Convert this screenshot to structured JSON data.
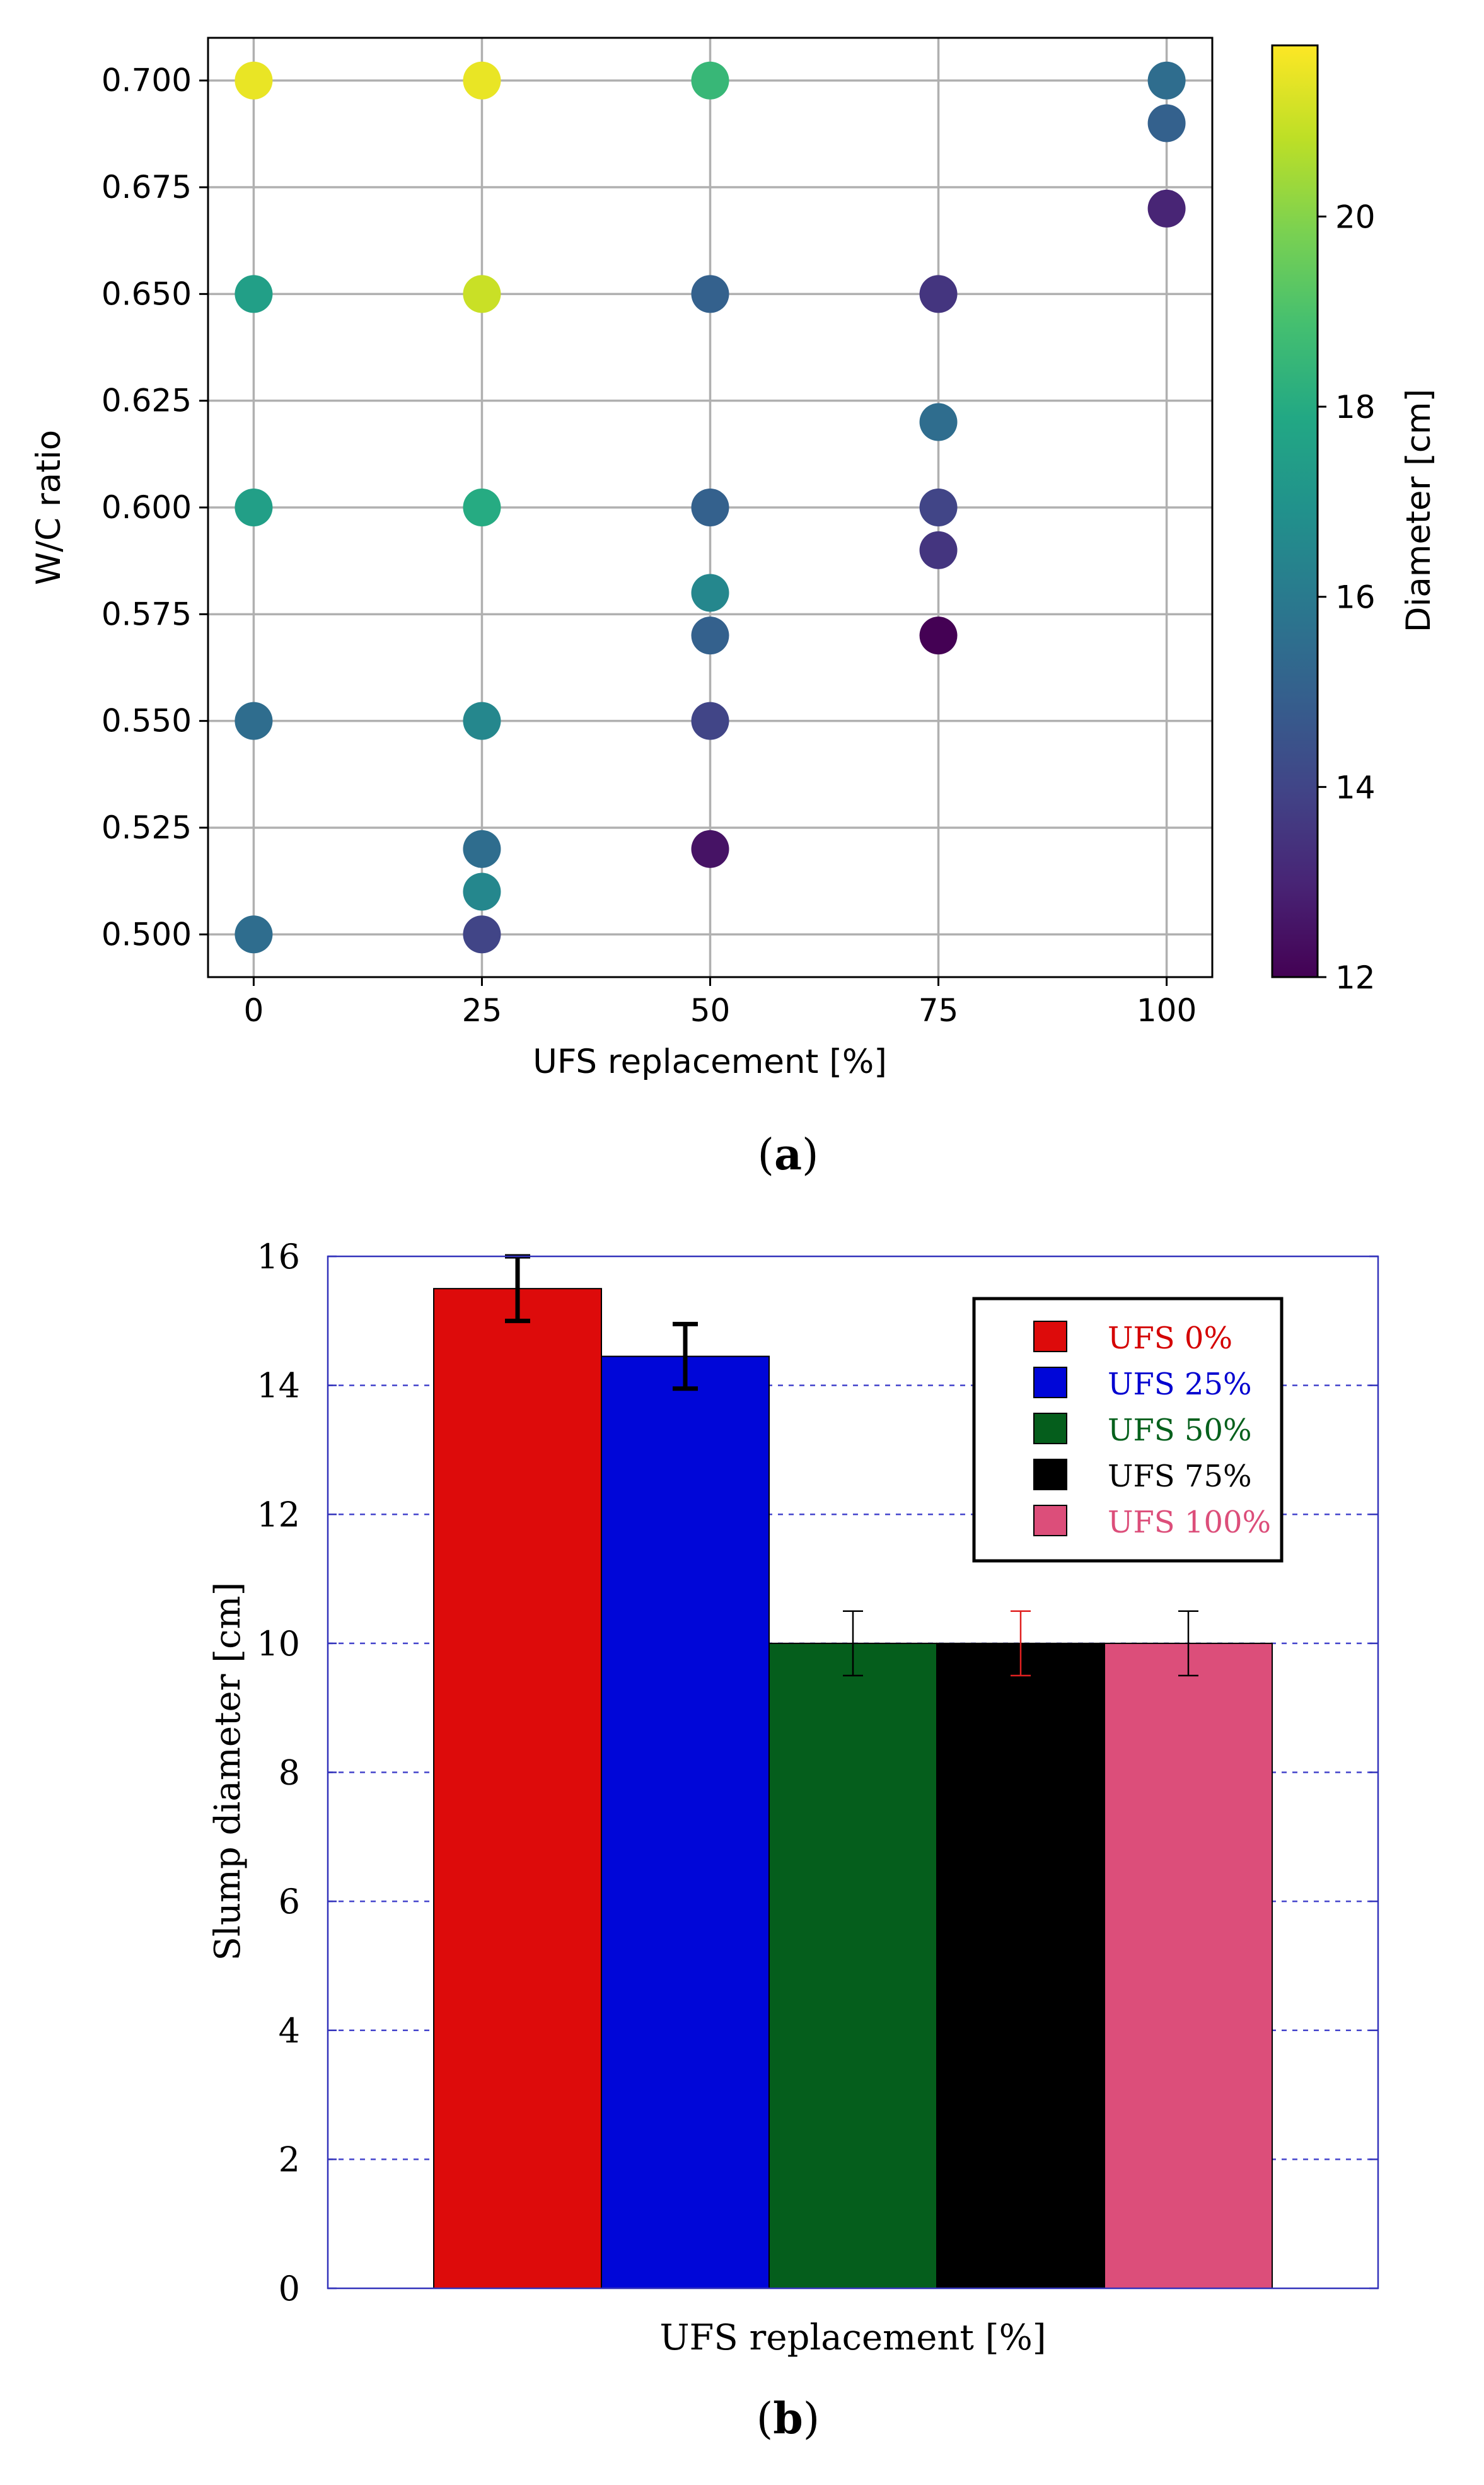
{
  "chart_data": [
    {
      "type": "scatter",
      "panel_label": "a",
      "xlabel": "UFS replacement [%]",
      "ylabel": "W/C ratio",
      "xlim": [
        -5,
        105
      ],
      "ylim": [
        0.49,
        0.71
      ],
      "xticks": [
        0,
        25,
        50,
        75,
        100
      ],
      "yticks": [
        0.5,
        0.525,
        0.55,
        0.575,
        0.6,
        0.625,
        0.65,
        0.675,
        0.7
      ],
      "grid": true,
      "colorbar": {
        "label": "Diameter [cm]",
        "range": [
          12,
          21.8
        ],
        "ticks": [
          12,
          14,
          16,
          18,
          20
        ],
        "colormap": "viridis"
      },
      "points": [
        {
          "x": 0,
          "y": 0.7,
          "c": 21.5
        },
        {
          "x": 0,
          "y": 0.65,
          "c": 17.5
        },
        {
          "x": 0,
          "y": 0.6,
          "c": 17.5
        },
        {
          "x": 0,
          "y": 0.55,
          "c": 15.5
        },
        {
          "x": 0,
          "y": 0.5,
          "c": 15.5
        },
        {
          "x": 25,
          "y": 0.7,
          "c": 21.5
        },
        {
          "x": 25,
          "y": 0.65,
          "c": 21.0
        },
        {
          "x": 25,
          "y": 0.6,
          "c": 18.0
        },
        {
          "x": 25,
          "y": 0.55,
          "c": 16.5
        },
        {
          "x": 25,
          "y": 0.52,
          "c": 15.5
        },
        {
          "x": 25,
          "y": 0.51,
          "c": 16.5
        },
        {
          "x": 25,
          "y": 0.5,
          "c": 14.0
        },
        {
          "x": 50,
          "y": 0.7,
          "c": 18.5
        },
        {
          "x": 50,
          "y": 0.65,
          "c": 15.0
        },
        {
          "x": 50,
          "y": 0.6,
          "c": 15.0
        },
        {
          "x": 50,
          "y": 0.58,
          "c": 16.5
        },
        {
          "x": 50,
          "y": 0.57,
          "c": 15.0
        },
        {
          "x": 50,
          "y": 0.55,
          "c": 14.0
        },
        {
          "x": 50,
          "y": 0.52,
          "c": 12.5
        },
        {
          "x": 75,
          "y": 0.65,
          "c": 13.5
        },
        {
          "x": 75,
          "y": 0.62,
          "c": 15.5
        },
        {
          "x": 75,
          "y": 0.6,
          "c": 14.0
        },
        {
          "x": 75,
          "y": 0.59,
          "c": 13.5
        },
        {
          "x": 75,
          "y": 0.57,
          "c": 12.0
        },
        {
          "x": 100,
          "y": 0.7,
          "c": 15.5
        },
        {
          "x": 100,
          "y": 0.69,
          "c": 15.0
        },
        {
          "x": 100,
          "y": 0.67,
          "c": 13.0
        }
      ]
    },
    {
      "type": "bar",
      "panel_label": "b",
      "xlabel": "UFS replacement [%]",
      "ylabel": "Slump diameter [cm]",
      "ylim": [
        0,
        16
      ],
      "yticks": [
        0,
        2,
        4,
        6,
        8,
        10,
        12,
        14,
        16
      ],
      "grid": "horizontal dashed",
      "legend_position": "top-right",
      "series": [
        {
          "name": "UFS 0%",
          "value": 15.5,
          "error": 0.5,
          "color": "#dd0b0b",
          "label_color": "#d40000",
          "err_color": "#000000"
        },
        {
          "name": "UFS 25%",
          "value": 14.45,
          "error": 0.5,
          "color": "#0006d8",
          "label_color": "#0000d0",
          "err_color": "#000000"
        },
        {
          "name": "UFS 50%",
          "value": 10.0,
          "error": 0.5,
          "color": "#055e1c",
          "label_color": "#05601c",
          "err_color": "#000000"
        },
        {
          "name": "UFS 75%",
          "value": 10.0,
          "error": 0.5,
          "color": "#000000",
          "label_color": "#000000",
          "err_color": "#e02020"
        },
        {
          "name": "UFS 100%",
          "value": 10.0,
          "error": 0.5,
          "color": "#dc4e7a",
          "label_color": "#dc4e7a",
          "err_color": "#000000"
        }
      ]
    }
  ]
}
